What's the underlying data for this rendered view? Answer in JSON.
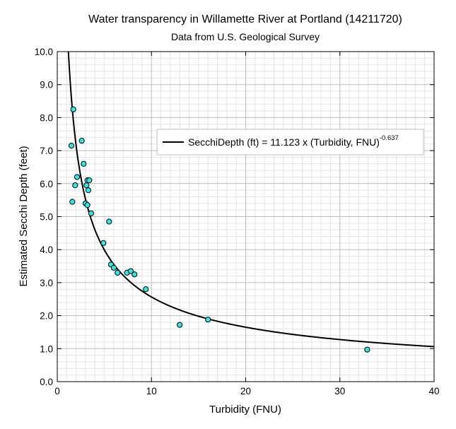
{
  "chart_data": {
    "type": "scatter",
    "title": "Water transparency in Willamette River at Portland (14211720)",
    "subtitle": "Data from U.S. Geological Survey",
    "xlabel": "Turbidity (FNU)",
    "ylabel": "Estimated Secchi Depth (feet)",
    "xlim": [
      0,
      40
    ],
    "ylim": [
      0,
      10
    ],
    "x_ticks": [
      0,
      10,
      20,
      30,
      40
    ],
    "y_ticks": [
      0.0,
      1.0,
      2.0,
      3.0,
      4.0,
      5.0,
      6.0,
      7.0,
      8.0,
      9.0,
      10.0
    ],
    "x_tick_labels": [
      "0",
      "10",
      "20",
      "30",
      "40"
    ],
    "y_tick_labels": [
      "0.0",
      "1.0",
      "2.0",
      "3.0",
      "4.0",
      "5.0",
      "6.0",
      "7.0",
      "8.0",
      "9.0",
      "10.0"
    ],
    "grid": true,
    "legend_position": "upper-right",
    "point_color": "#33e5e5",
    "point_edge_color": "#000000",
    "line_color": "#000000",
    "series": [
      {
        "kind": "points",
        "x": [
          1.5,
          1.6,
          1.7,
          1.9,
          2.1,
          2.6,
          2.8,
          3.0,
          3.1,
          3.2,
          3.2,
          3.3,
          3.4,
          3.6,
          4.9,
          5.5,
          5.7,
          6.0,
          6.4,
          7.4,
          7.8,
          8.2,
          9.4,
          13.0,
          16.0,
          32.9
        ],
        "y": [
          7.15,
          5.45,
          8.25,
          5.95,
          6.2,
          7.3,
          6.6,
          5.4,
          5.95,
          6.1,
          5.35,
          5.8,
          6.1,
          5.1,
          4.2,
          4.85,
          3.55,
          3.45,
          3.3,
          3.3,
          3.35,
          3.25,
          2.8,
          1.72,
          1.88,
          0.97
        ]
      },
      {
        "kind": "fit",
        "name": "SecchiDepth (ft) = 11.123 x (Turbidity, FNU)",
        "exponent_label": "-0.637",
        "coefficient": 11.123,
        "exponent": -0.637
      }
    ]
  }
}
